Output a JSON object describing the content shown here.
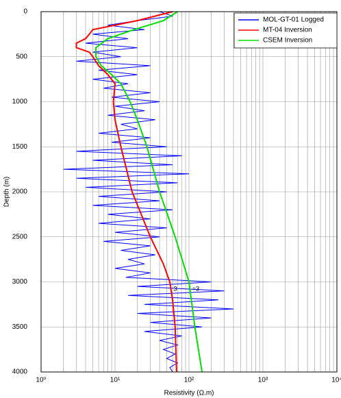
{
  "chart_data": {
    "type": "line",
    "xlabel": "Resistivity (Ω.m)",
    "ylabel": "Depth (m)",
    "x_log": true,
    "y_inverted": true,
    "grid": true,
    "minor_grid": true,
    "legend": "upper right",
    "xlim": [
      1,
      10000
    ],
    "xticks": [
      {
        "value": 1,
        "label": "10⁰"
      },
      {
        "value": 10,
        "label": "10¹"
      },
      {
        "value": 100,
        "label": "10²"
      },
      {
        "value": 1000,
        "label": "10³"
      },
      {
        "value": 10000,
        "label": "10⁴"
      }
    ],
    "ylim": [
      0,
      4000
    ],
    "yticks": [
      0,
      500,
      1000,
      1500,
      2000,
      2500,
      3000,
      3500,
      4000
    ],
    "annotations": [
      "3",
      "=3"
    ],
    "series": [
      {
        "name": "MOL-GT-01 Logged",
        "color": "#0000ff",
        "x": [
          40,
          60,
          20,
          8,
          25,
          5,
          15,
          4,
          20,
          5,
          12,
          3,
          30,
          6,
          20,
          5,
          15,
          7,
          30,
          9,
          40,
          10,
          25,
          8,
          35,
          12,
          20,
          6,
          30,
          9,
          50,
          3,
          80,
          5,
          60,
          2,
          100,
          3,
          70,
          4,
          50,
          6,
          40,
          5,
          60,
          8,
          30,
          6,
          50,
          10,
          40,
          7,
          30,
          12,
          35,
          15,
          25,
          10,
          30,
          14,
          200,
          20,
          300,
          15,
          250,
          25,
          400,
          20,
          200,
          30,
          150,
          25,
          80,
          40,
          70,
          45,
          65,
          50,
          70,
          55,
          60
        ],
        "y": [
          0,
          50,
          100,
          150,
          200,
          250,
          300,
          350,
          400,
          450,
          500,
          550,
          600,
          650,
          700,
          750,
          800,
          850,
          900,
          950,
          1000,
          1050,
          1100,
          1150,
          1200,
          1250,
          1300,
          1350,
          1400,
          1450,
          1500,
          1550,
          1600,
          1650,
          1700,
          1750,
          1800,
          1850,
          1900,
          1950,
          2000,
          2050,
          2100,
          2150,
          2200,
          2250,
          2300,
          2350,
          2400,
          2450,
          2500,
          2550,
          2600,
          2650,
          2700,
          2750,
          2800,
          2850,
          2900,
          2950,
          3000,
          3050,
          3100,
          3150,
          3200,
          3250,
          3300,
          3350,
          3400,
          3450,
          3500,
          3550,
          3600,
          3650,
          3700,
          3750,
          3800,
          3850,
          3900,
          3950,
          4000
        ]
      },
      {
        "name": "MT-04 Inversion",
        "color": "#ff0000",
        "x": [
          60,
          20,
          5,
          4.5,
          4,
          3,
          3,
          4.5,
          5,
          6,
          8,
          10,
          9.5,
          10,
          12,
          17,
          30,
          45,
          55,
          60,
          65,
          68
        ],
        "y": [
          0,
          100,
          200,
          250,
          300,
          350,
          400,
          450,
          500,
          600,
          700,
          800,
          1000,
          1200,
          1500,
          2000,
          2500,
          2800,
          3000,
          3200,
          3500,
          4000
        ]
      },
      {
        "name": "CSEM Inversion",
        "color": "#00e000",
        "x": [
          70,
          45,
          18,
          8,
          5.5,
          5.5,
          6.5,
          9,
          12,
          16,
          20,
          27,
          40,
          65,
          100,
          120,
          150
        ],
        "y": [
          0,
          100,
          200,
          300,
          400,
          500,
          600,
          700,
          800,
          1000,
          1200,
          1500,
          2000,
          2500,
          3000,
          3500,
          4000
        ]
      }
    ]
  }
}
